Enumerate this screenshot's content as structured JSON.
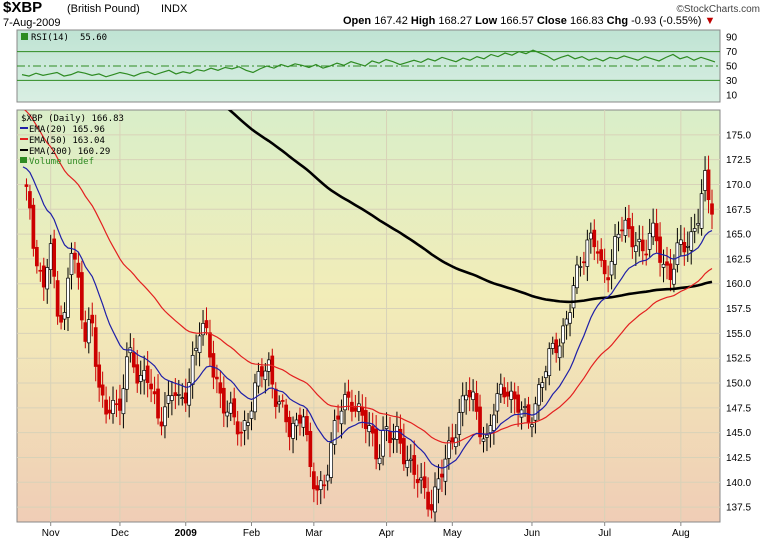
{
  "header": {
    "symbol": "$XBP",
    "name": "(British Pound)",
    "exchange": "INDX",
    "date": "7-Aug-2009",
    "logo": "©StockCharts.com",
    "open_label": "Open",
    "open": "167.42",
    "high_label": "High",
    "high": "168.27",
    "low_label": "Low",
    "low": "166.57",
    "close_label": "Close",
    "close": "166.83",
    "chg_label": "Chg",
    "chg": "-0.93 (-0.55%)",
    "chg_marker": "▼"
  },
  "colors": {
    "rsi_line": "#2e8b22",
    "rsi_fill": "#3aa02a",
    "ema20": "#1f1fa8",
    "ema50": "#e32020",
    "ema200": "#000000",
    "candle_up": "#ffffff",
    "candle_down": "#cc0000",
    "volume": "#2e8b22"
  },
  "chart_data": [
    {
      "type": "line",
      "title": "RSI(14) 55.60",
      "series": [
        {
          "name": "RSI(14)",
          "values": [
            38,
            36,
            40,
            37,
            39,
            41,
            36,
            38,
            42,
            40,
            37,
            39,
            35,
            38,
            41,
            39,
            36,
            40,
            42,
            38,
            41,
            44,
            39,
            42,
            40,
            45,
            43,
            47,
            44,
            48,
            46,
            49,
            44,
            41,
            46,
            50,
            47,
            52,
            49,
            53,
            51,
            48,
            52,
            47,
            50,
            54,
            51,
            56,
            53,
            50,
            57,
            54,
            59,
            56,
            52,
            55,
            58,
            55,
            60,
            57,
            62,
            59,
            56,
            61,
            58,
            63,
            60,
            66,
            63,
            68,
            65,
            70,
            67,
            72,
            68,
            64,
            58,
            62,
            65,
            60,
            63,
            58,
            61,
            57,
            62,
            60,
            64,
            61,
            58,
            63,
            60,
            57,
            62,
            66,
            60,
            63,
            58,
            62,
            59,
            55.6
          ]
        }
      ],
      "ylim": [
        0,
        100
      ],
      "yticks": [
        90,
        70,
        50,
        30,
        10
      ],
      "reference_lines": [
        70,
        50,
        30
      ]
    },
    {
      "type": "candlestick",
      "title": "$XBP (Daily) 166.83",
      "legend": [
        {
          "name": "EMA(20)",
          "value": "165.96"
        },
        {
          "name": "EMA(50)",
          "value": "163.04"
        },
        {
          "name": "EMA(200)",
          "value": "160.29"
        },
        {
          "name": "Volume undef",
          "value": ""
        }
      ],
      "x_tick_labels": [
        "Nov",
        "Dec",
        "2009",
        "Feb",
        "Mar",
        "Apr",
        "May",
        "Jun",
        "Jul",
        "Aug"
      ],
      "ylim": [
        136,
        177.5
      ],
      "yticks": [
        175.0,
        172.5,
        170.0,
        167.5,
        165.0,
        162.5,
        160.0,
        157.5,
        155.0,
        152.5,
        150.0,
        147.5,
        145.0,
        142.5,
        140.0,
        137.5
      ],
      "close": [
        169,
        168,
        162,
        160,
        163,
        158,
        156,
        164,
        160,
        155,
        157,
        150,
        146,
        149,
        147,
        151,
        153,
        150,
        152,
        148,
        146,
        148,
        150,
        147,
        149,
        153,
        156,
        154,
        151,
        149,
        147,
        146,
        145,
        147,
        149,
        151,
        152,
        149,
        147,
        145,
        146,
        148,
        141,
        139,
        140,
        143,
        146,
        148,
        149,
        147,
        146,
        145,
        143,
        145,
        144,
        145,
        143,
        141,
        140,
        139,
        138,
        140,
        142,
        145,
        147,
        149,
        148,
        146,
        144,
        147,
        149,
        150,
        148,
        147,
        146,
        148,
        150,
        152,
        154,
        155,
        157,
        160,
        163,
        165,
        164,
        160,
        162,
        165,
        166,
        164,
        165,
        163,
        165,
        164,
        162,
        161,
        163,
        164,
        165,
        167,
        170,
        167
      ]
    }
  ],
  "rsi_panel": {
    "indicator": "RSI(14)",
    "value": "55.60",
    "ytick_labels": [
      "90",
      "70",
      "50",
      "30",
      "10"
    ]
  },
  "price_panel": {
    "title": "$XBP (Daily) 166.83",
    "legend": [
      "EMA(20) 165.96",
      "EMA(50) 163.04",
      "EMA(200) 160.29",
      "Volume undef"
    ],
    "ytick_labels": [
      "175.0",
      "172.5",
      "170.0",
      "167.5",
      "165.0",
      "162.5",
      "160.0",
      "157.5",
      "155.0",
      "152.5",
      "150.0",
      "147.5",
      "145.0",
      "142.5",
      "140.0",
      "137.5"
    ],
    "xtick_labels": [
      "Nov",
      "Dec",
      "2009",
      "Feb",
      "Mar",
      "Apr",
      "May",
      "Jun",
      "Jul",
      "Aug"
    ]
  }
}
